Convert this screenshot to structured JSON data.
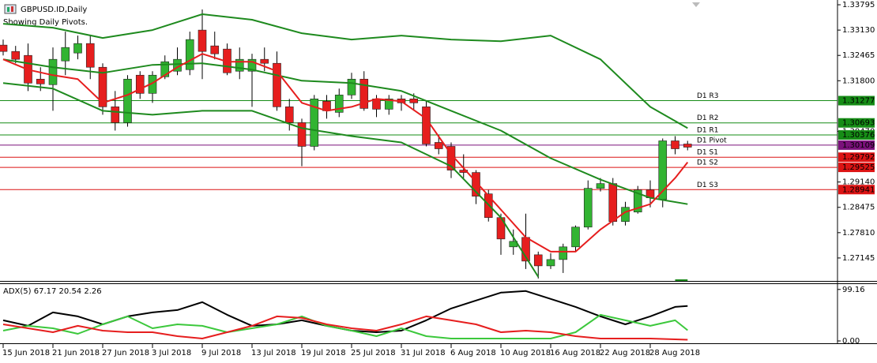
{
  "chart_data": [
    {
      "type": "candlestick",
      "title": "GBPUSD.ID,Daily",
      "subtitle": "Showing Daily Pivots.",
      "categories": [
        "15 Jun 2018",
        null,
        null,
        null,
        "21 Jun 2018",
        null,
        null,
        null,
        "27 Jun 2018",
        null,
        null,
        null,
        "3 Jul 2018",
        null,
        null,
        null,
        "9 Jul 2018",
        null,
        null,
        null,
        "13 Jul 2018",
        null,
        null,
        null,
        "19 Jul 2018",
        null,
        null,
        null,
        "25 Jul 2018",
        null,
        null,
        null,
        "31 Jul 2018",
        null,
        null,
        null,
        "6 Aug 2018",
        null,
        null,
        null,
        "10 Aug 2018",
        null,
        null,
        null,
        "16 Aug 2018",
        null,
        null,
        null,
        "22 Aug 2018",
        null,
        null,
        null,
        "28 Aug 2018",
        null,
        null,
        null
      ],
      "ohlc": [
        [
          1.32736,
          1.32881,
          1.32465,
          1.32569
        ],
        [
          1.32569,
          1.32715,
          1.32258,
          1.32362
        ],
        [
          1.32465,
          1.32777,
          1.3153,
          1.31738
        ],
        [
          1.31842,
          1.32154,
          1.3153,
          1.31717
        ],
        [
          1.31697,
          1.32673,
          1.31011,
          1.32362
        ],
        [
          1.3232,
          1.33089,
          1.31946,
          1.32673
        ],
        [
          1.32528,
          1.32985,
          1.32362,
          1.32777
        ],
        [
          1.32777,
          1.32985,
          1.31842,
          1.32154
        ],
        [
          1.32154,
          1.32258,
          1.30907,
          1.31115
        ],
        [
          1.31115,
          1.3153,
          1.30491,
          1.30699
        ],
        [
          1.30699,
          1.31946,
          1.30595,
          1.31842
        ],
        [
          1.31946,
          1.3205,
          1.31323,
          1.31468
        ],
        [
          1.31468,
          1.3205,
          1.31219,
          1.31946
        ],
        [
          1.31904,
          1.32465,
          1.31842,
          1.32299
        ],
        [
          1.3205,
          1.32673,
          1.31946,
          1.32362
        ],
        [
          1.32091,
          1.33089,
          1.31946,
          1.32881
        ],
        [
          1.3313,
          1.33671,
          1.31842,
          1.32569
        ],
        [
          1.32715,
          1.33089,
          1.32362,
          1.32507
        ],
        [
          1.32632,
          1.32777,
          1.31946,
          1.32008
        ],
        [
          1.3205,
          1.32673,
          1.31842,
          1.32362
        ],
        [
          1.3205,
          1.32507,
          1.31115,
          1.32362
        ],
        [
          1.32362,
          1.32673,
          1.3205,
          1.32258
        ],
        [
          1.32258,
          1.32569,
          1.31011,
          1.31115
        ],
        [
          1.31115,
          1.31323,
          1.30491,
          1.30699
        ],
        [
          1.30699,
          1.30803,
          1.29556,
          1.30076
        ],
        [
          1.30076,
          1.31426,
          1.29972,
          1.31323
        ],
        [
          1.3126,
          1.31426,
          1.30803,
          1.31011
        ],
        [
          1.30969,
          1.31593,
          1.30845,
          1.31426
        ],
        [
          1.31426,
          1.32008,
          1.31323,
          1.31842
        ],
        [
          1.31842,
          1.3205,
          1.31011,
          1.31073
        ],
        [
          1.31323,
          1.31426,
          1.30845,
          1.31052
        ],
        [
          1.31052,
          1.31426,
          1.30907,
          1.31323
        ],
        [
          1.31323,
          1.31426,
          1.31011,
          1.31219
        ],
        [
          1.31323,
          1.31468,
          1.31011,
          1.31219
        ],
        [
          1.31115,
          1.3126,
          1.30076,
          1.30138
        ],
        [
          1.3018,
          1.30387,
          1.29868,
          1.30013
        ],
        [
          1.30076,
          1.3018,
          1.29245,
          1.29452
        ],
        [
          1.29452,
          1.29868,
          1.29245,
          1.2939
        ],
        [
          1.2939,
          1.29452,
          1.28559,
          1.28767
        ],
        [
          1.28829,
          1.28933,
          1.28102,
          1.28206
        ],
        [
          1.28206,
          1.28309,
          1.27229,
          1.27644
        ],
        [
          1.27437,
          1.27894,
          1.27229,
          1.27582
        ],
        [
          1.27686,
          1.28309,
          1.26855,
          1.27063
        ],
        [
          1.27229,
          1.27312,
          1.26606,
          1.26938
        ],
        [
          1.26938,
          1.2727,
          1.26855,
          1.27104
        ],
        [
          1.27104,
          1.2752,
          1.26751,
          1.27437
        ],
        [
          1.27437,
          1.27998,
          1.27312,
          1.27956
        ],
        [
          1.27956,
          1.29182,
          1.27894,
          1.28974
        ],
        [
          1.28974,
          1.29245,
          1.28891,
          1.29099
        ],
        [
          1.29099,
          1.29245,
          1.27998,
          1.28102
        ],
        [
          1.28102,
          1.28621,
          1.27998,
          1.28476
        ],
        [
          1.28351,
          1.29037,
          1.28309,
          1.28933
        ],
        [
          1.28933,
          1.29182,
          1.28476,
          1.28725
        ],
        [
          1.28684,
          1.30284,
          1.28476,
          1.30221
        ],
        [
          1.30221,
          1.30346,
          1.29868,
          1.30013
        ],
        [
          1.30138,
          1.30221,
          1.29972,
          1.30055
        ]
      ],
      "up_color": "#32b432",
      "down_color": "#e61e1e",
      "lines": [
        {
          "color": "#1e8a1e",
          "x": [
            0,
            4,
            8,
            12,
            16,
            20,
            24,
            28,
            32,
            36,
            40,
            44,
            48,
            52,
            55
          ],
          "values": [
            1.33297,
            1.33193,
            1.32923,
            1.3313,
            1.33546,
            1.33401,
            1.33047,
            1.32881,
            1.32985,
            1.32881,
            1.32839,
            1.32985,
            1.32362,
            1.31115,
            1.30554
          ]
        },
        {
          "color": "#1e8a1e",
          "x": [
            0,
            4,
            8,
            12,
            16,
            20,
            24,
            28,
            32,
            36,
            40,
            44,
            48,
            52,
            55
          ],
          "values": [
            1.32362,
            1.32154,
            1.32008,
            1.32216,
            1.32258,
            1.32091,
            1.318,
            1.31738,
            1.3153,
            1.31011,
            1.30491,
            1.29764,
            1.29203,
            1.28725,
            1.28559
          ]
        },
        {
          "color": "#1e8a1e",
          "x": [
            0,
            4,
            8,
            12,
            16,
            20,
            24,
            28,
            32,
            36,
            40,
            43,
            48,
            54,
            55
          ],
          "values": [
            1.31738,
            1.31593,
            1.31011,
            1.30907,
            1.31011,
            1.31011,
            1.30554,
            1.30346,
            1.3018,
            1.29556,
            1.28206,
            1.26647,
            null,
            1.26564,
            1.26564
          ]
        },
        {
          "color": "#e61e1e",
          "x": [
            0,
            2,
            4,
            6,
            8,
            10,
            12,
            14,
            16,
            18,
            20,
            22,
            24,
            26,
            28,
            30,
            32,
            34,
            36,
            38,
            40,
            42,
            44,
            46,
            48,
            50,
            52,
            54,
            55
          ],
          "values": [
            1.32362,
            1.32091,
            1.31946,
            1.31842,
            1.31219,
            1.31426,
            1.31738,
            1.32154,
            1.32507,
            1.32299,
            1.32299,
            1.3205,
            1.31219,
            1.31011,
            1.31115,
            1.31323,
            1.3126,
            1.30803,
            1.29868,
            1.29141,
            1.28413,
            1.27686,
            1.27312,
            1.27312,
            1.27894,
            1.28351,
            1.28559,
            1.29245,
            1.2966
          ]
        }
      ],
      "pivots": [
        {
          "label": "D1 R3",
          "value": 1.31277,
          "color": "#168c16"
        },
        {
          "label": "D1 R2",
          "value": 1.30693,
          "color": "#168c16"
        },
        {
          "label": "D1 R1",
          "value": 1.30376,
          "color": "#168c16"
        },
        {
          "label": "D1 Pivot",
          "value": 1.30109,
          "color": "#7a117a"
        },
        {
          "label": "D1 S1",
          "value": 1.29792,
          "color": "#dc1414"
        },
        {
          "label": "D1 S2",
          "value": 1.29525,
          "color": "#dc1414"
        },
        {
          "label": "D1 S3",
          "value": 1.28941,
          "color": "#dc1414"
        }
      ],
      "ylim": [
        1.26563,
        1.3392
      ],
      "yticks": [
        1.33795,
        {
          "value": 1.3313,
          "label": "1.33130"
        },
        1.32465,
        {
          "value": 1.318,
          "label": "1.31800"
        },
        {
          "value": 1.3047,
          "label": "1.30470"
        },
        {
          "value": 1.2914,
          "label": "1.29140"
        },
        1.28475,
        {
          "value": 1.2781,
          "label": "1.27810"
        },
        1.27145
      ]
    },
    {
      "type": "line",
      "title": "ADX(5) 67.17 20.54 2.26",
      "x": [
        0,
        2,
        4,
        6,
        8,
        10,
        12,
        14,
        16,
        18,
        20,
        22,
        24,
        26,
        28,
        30,
        32,
        34,
        36,
        38,
        40,
        42,
        44,
        46,
        48,
        50,
        52,
        54,
        55
      ],
      "series": [
        {
          "color": "#000000",
          "values": [
            39.7,
            29.0,
            54.9,
            47.3,
            32.0,
            47.3,
            54.9,
            59.5,
            74.7,
            50.3,
            29.0,
            32.0,
            39.7,
            29.0,
            19.8,
            16.8,
            19.8,
            39.7,
            62.5,
            77.8,
            93.1,
            96.1,
            80.9,
            65.6,
            47.3,
            32.0,
            47.3,
            65.6,
            67.17
          ]
        },
        {
          "color": "#3cc83c",
          "values": [
            19.8,
            29.0,
            24.4,
            13.7,
            32.0,
            47.3,
            24.4,
            32.0,
            29.0,
            16.8,
            24.4,
            32.0,
            47.3,
            29.0,
            19.8,
            9.2,
            24.4,
            9.2,
            4.6,
            4.6,
            4.6,
            4.6,
            4.6,
            16.8,
            50.3,
            39.7,
            29.0,
            39.7,
            20.54
          ]
        },
        {
          "color": "#e61e1e",
          "values": [
            32.0,
            24.4,
            16.8,
            29.0,
            19.8,
            16.8,
            16.8,
            9.2,
            4.6,
            16.8,
            29.0,
            47.3,
            44.2,
            32.0,
            24.4,
            19.8,
            32.0,
            47.3,
            39.7,
            32.0,
            16.8,
            19.8,
            16.8,
            9.2,
            4.6,
            4.6,
            4.6,
            3.1,
            2.26
          ]
        }
      ],
      "ylim": [
        -3,
        111
      ],
      "yticks": [
        99.16,
        {
          "value": 0,
          "label": "0.00"
        }
      ]
    }
  ]
}
